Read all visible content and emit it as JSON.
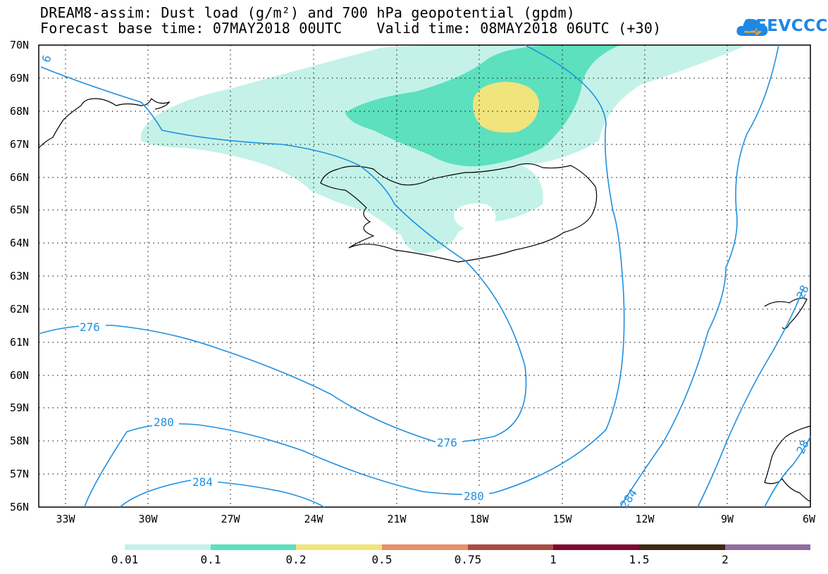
{
  "header": {
    "title_line1": "DREAM8-assim: Dust load (g/m²) and 700 hPa geopotential (gpdm)",
    "title_line2": "Forecast base time: 07MAY2018 00UTC    Valid time: 08MAY2018 06UTC (+30)"
  },
  "logo": {
    "text": "SEEVCCC",
    "icon": "cloud-icon"
  },
  "map": {
    "region": "North Atlantic / Iceland",
    "lat_range": [
      56,
      70
    ],
    "lon_range": [
      -34.4,
      -6
    ],
    "lat_labels": [
      "70N",
      "69N",
      "68N",
      "67N",
      "66N",
      "65N",
      "64N",
      "63N",
      "62N",
      "61N",
      "60N",
      "59N",
      "58N",
      "57N",
      "56N"
    ],
    "lon_labels": [
      "33W",
      "30W",
      "27W",
      "24W",
      "21W",
      "18W",
      "15W",
      "12W",
      "9W",
      "6W"
    ],
    "contour_labels": [
      "276",
      "276",
      "280",
      "280",
      "284",
      "284",
      "6",
      "28",
      "28"
    ],
    "contour_color": "#1e90e0",
    "coast_color": "#000000"
  },
  "colorbar": {
    "labels": [
      "0.01",
      "0.1",
      "0.2",
      "0.5",
      "0.75",
      "1",
      "1.5",
      "2"
    ],
    "colors": [
      "#c4f2e8",
      "#5ce0be",
      "#f0e47c",
      "#e8906a",
      "#a84c44",
      "#7c0a2c",
      "#3c2814",
      "#906ca0"
    ]
  }
}
